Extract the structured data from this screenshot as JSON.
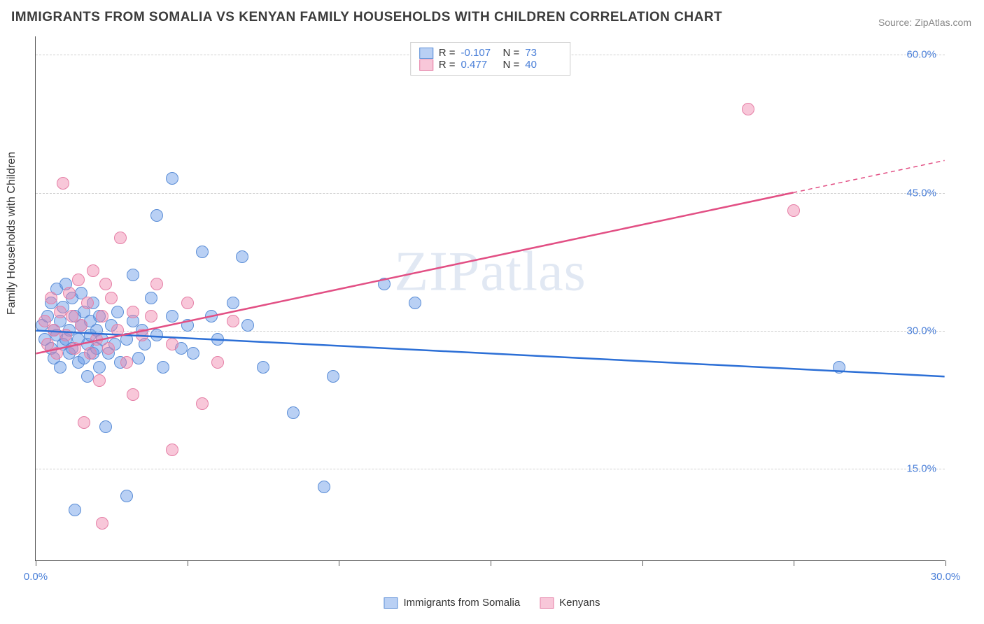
{
  "title": "IMMIGRANTS FROM SOMALIA VS KENYAN FAMILY HOUSEHOLDS WITH CHILDREN CORRELATION CHART",
  "source": "Source: ZipAtlas.com",
  "ylabel": "Family Households with Children",
  "watermark": "ZIPatlas",
  "chart": {
    "type": "scatter",
    "xlim": [
      0,
      30
    ],
    "ylim": [
      5,
      62
    ],
    "x_tick_start": 0.0,
    "x_tick_end": 30.0,
    "x_minor_step": 5,
    "y_gridlines": [
      15,
      30,
      45,
      60
    ],
    "y_tick_labels": [
      "15.0%",
      "30.0%",
      "45.0%",
      "60.0%"
    ],
    "x_tick_labels": [
      "0.0%",
      "30.0%"
    ],
    "background_color": "#ffffff",
    "grid_color": "#d0d0d0",
    "axis_color": "#555555",
    "tick_label_color": "#4a7fd8",
    "tick_label_fontsize": 15,
    "marker_size": 18,
    "fit_line_width": 2.5,
    "fit_dash_width": 1.5
  },
  "series": [
    {
      "name": "Immigrants from Somalia",
      "r": "-0.107",
      "n": "73",
      "fill": "rgba(100,150,230,0.45)",
      "stroke": "#5a8dd6",
      "line_color": "#2c6fd6",
      "fit": {
        "x1": 0,
        "y1": 30.0,
        "x2": 30,
        "y2": 25.0,
        "dash_from_x": 30
      },
      "points": [
        [
          0.2,
          30.5
        ],
        [
          0.3,
          29.0
        ],
        [
          0.4,
          31.5
        ],
        [
          0.5,
          28.0
        ],
        [
          0.5,
          33.0
        ],
        [
          0.6,
          30.0
        ],
        [
          0.6,
          27.0
        ],
        [
          0.7,
          29.5
        ],
        [
          0.7,
          34.5
        ],
        [
          0.8,
          31.0
        ],
        [
          0.8,
          26.0
        ],
        [
          0.9,
          28.5
        ],
        [
          0.9,
          32.5
        ],
        [
          1.0,
          29.0
        ],
        [
          1.0,
          35.0
        ],
        [
          1.1,
          27.5
        ],
        [
          1.1,
          30.0
        ],
        [
          1.2,
          33.5
        ],
        [
          1.2,
          28.0
        ],
        [
          1.3,
          10.5
        ],
        [
          1.3,
          31.5
        ],
        [
          1.4,
          29.0
        ],
        [
          1.4,
          26.5
        ],
        [
          1.5,
          30.5
        ],
        [
          1.5,
          34.0
        ],
        [
          1.6,
          27.0
        ],
        [
          1.6,
          32.0
        ],
        [
          1.7,
          28.5
        ],
        [
          1.7,
          25.0
        ],
        [
          1.8,
          31.0
        ],
        [
          1.8,
          29.5
        ],
        [
          1.9,
          27.5
        ],
        [
          1.9,
          33.0
        ],
        [
          2.0,
          28.0
        ],
        [
          2.0,
          30.0
        ],
        [
          2.1,
          26.0
        ],
        [
          2.1,
          31.5
        ],
        [
          2.2,
          29.0
        ],
        [
          2.3,
          19.5
        ],
        [
          2.4,
          27.5
        ],
        [
          2.5,
          30.5
        ],
        [
          2.6,
          28.5
        ],
        [
          2.7,
          32.0
        ],
        [
          2.8,
          26.5
        ],
        [
          3.0,
          29.0
        ],
        [
          3.0,
          12.0
        ],
        [
          3.2,
          31.0
        ],
        [
          3.2,
          36.0
        ],
        [
          3.4,
          27.0
        ],
        [
          3.5,
          30.0
        ],
        [
          3.6,
          28.5
        ],
        [
          3.8,
          33.5
        ],
        [
          4.0,
          29.5
        ],
        [
          4.0,
          42.5
        ],
        [
          4.2,
          26.0
        ],
        [
          4.5,
          31.5
        ],
        [
          4.5,
          46.5
        ],
        [
          4.8,
          28.0
        ],
        [
          5.0,
          30.5
        ],
        [
          5.2,
          27.5
        ],
        [
          5.5,
          38.5
        ],
        [
          5.8,
          31.5
        ],
        [
          6.0,
          29.0
        ],
        [
          6.5,
          33.0
        ],
        [
          6.8,
          38.0
        ],
        [
          7.0,
          30.5
        ],
        [
          7.5,
          26.0
        ],
        [
          8.5,
          21.0
        ],
        [
          9.5,
          13.0
        ],
        [
          9.8,
          25.0
        ],
        [
          11.5,
          35.0
        ],
        [
          12.5,
          33.0
        ],
        [
          26.5,
          26.0
        ]
      ]
    },
    {
      "name": "Kenyans",
      "r": "0.477",
      "n": "40",
      "fill": "rgba(240,130,170,0.45)",
      "stroke": "#e57fa6",
      "line_color": "#e24f84",
      "fit": {
        "x1": 0,
        "y1": 27.5,
        "x2": 30,
        "y2": 48.5,
        "dash_from_x": 25
      },
      "points": [
        [
          0.3,
          31.0
        ],
        [
          0.4,
          28.5
        ],
        [
          0.5,
          33.5
        ],
        [
          0.6,
          30.0
        ],
        [
          0.7,
          27.5
        ],
        [
          0.8,
          32.0
        ],
        [
          0.9,
          46.0
        ],
        [
          1.0,
          29.5
        ],
        [
          1.1,
          34.0
        ],
        [
          1.2,
          31.5
        ],
        [
          1.3,
          28.0
        ],
        [
          1.4,
          35.5
        ],
        [
          1.5,
          30.5
        ],
        [
          1.6,
          20.0
        ],
        [
          1.7,
          33.0
        ],
        [
          1.8,
          27.5
        ],
        [
          1.9,
          36.5
        ],
        [
          2.0,
          29.0
        ],
        [
          2.1,
          24.5
        ],
        [
          2.2,
          31.5
        ],
        [
          2.2,
          9.0
        ],
        [
          2.3,
          35.0
        ],
        [
          2.4,
          28.0
        ],
        [
          2.5,
          33.5
        ],
        [
          2.7,
          30.0
        ],
        [
          2.8,
          40.0
        ],
        [
          3.0,
          26.5
        ],
        [
          3.2,
          32.0
        ],
        [
          3.2,
          23.0
        ],
        [
          3.5,
          29.5
        ],
        [
          3.8,
          31.5
        ],
        [
          4.0,
          35.0
        ],
        [
          4.5,
          28.5
        ],
        [
          4.5,
          17.0
        ],
        [
          5.0,
          33.0
        ],
        [
          5.5,
          22.0
        ],
        [
          6.0,
          26.5
        ],
        [
          6.5,
          31.0
        ],
        [
          23.5,
          54.0
        ],
        [
          25.0,
          43.0
        ]
      ]
    }
  ],
  "legend_top": {
    "r_label": "R =",
    "n_label": "N ="
  },
  "legend_bottom": [
    "Immigrants from Somalia",
    "Kenyans"
  ]
}
